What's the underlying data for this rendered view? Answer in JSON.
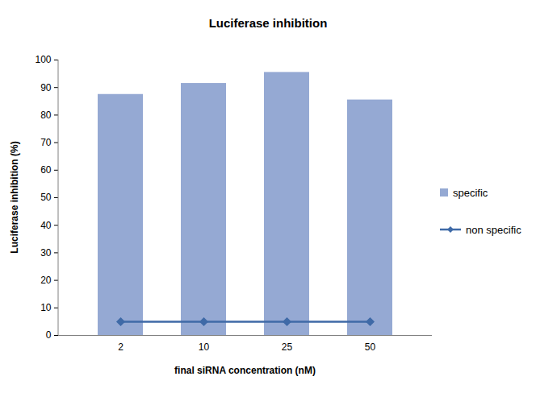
{
  "chart_data": {
    "type": "bar",
    "title": "Luciferase inhibition",
    "x_label": "final siRNA concentration (nM)",
    "y_label": "Luciferase inhibition (%)",
    "categories": [
      "2",
      "10",
      "25",
      "50"
    ],
    "series": [
      {
        "name": "specific",
        "type": "bar",
        "color": "#95a9d3",
        "values": [
          87.5,
          91.5,
          95.5,
          85.5
        ]
      },
      {
        "name": "non specific",
        "type": "line",
        "color": "#3f6aa7",
        "marker": "diamond",
        "line_style": "solid",
        "values": [
          5,
          5,
          5,
          5
        ]
      }
    ],
    "ylim": [
      0,
      100
    ],
    "yticks": [
      0,
      10,
      20,
      30,
      40,
      50,
      60,
      70,
      80,
      90,
      100
    ],
    "grid": false,
    "legend": "right"
  }
}
